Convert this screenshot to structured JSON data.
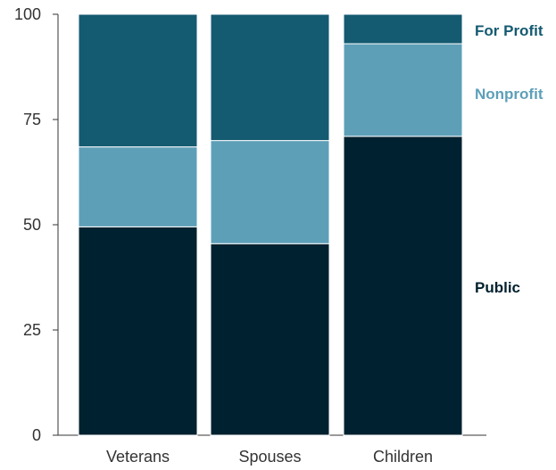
{
  "chart_data": {
    "type": "bar",
    "stacked": true,
    "categories": [
      "Veterans",
      "Spouses",
      "Children"
    ],
    "series": [
      {
        "name": "Public",
        "values": [
          49.5,
          45.5,
          71
        ],
        "color": "#00212f"
      },
      {
        "name": "Nonprofit",
        "values": [
          19,
          24.5,
          22
        ],
        "color": "#5e9fb8"
      },
      {
        "name": "For Profit",
        "values": [
          31.5,
          30,
          7
        ],
        "color": "#145a70"
      }
    ],
    "yticks": [
      0,
      25,
      50,
      75,
      100
    ],
    "ylim": [
      0,
      100
    ],
    "grid": false,
    "legend_placement": "right"
  }
}
